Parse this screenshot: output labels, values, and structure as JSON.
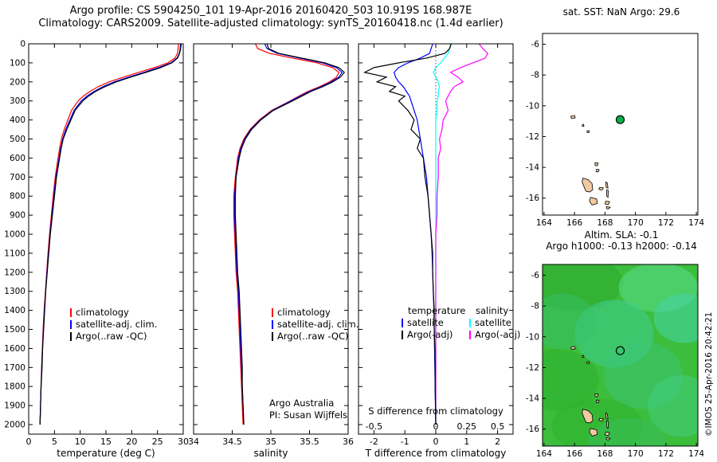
{
  "page": {
    "title_line1": "Argo profile: CS 5904250_101 19-Apr-2016 20160420_503 10.919S 168.987E",
    "title_line2": "Climatology: CARS2009. Satellite-adjusted climatology: synTS_20160418.nc (1.4d earlier)"
  },
  "panels_text": {
    "legend_profile": {
      "items": [
        {
          "label": "climatology",
          "color": "#ff0000"
        },
        {
          "label": "satellite-adj. clim.",
          "color": "#0000ff"
        },
        {
          "label": "Argo(..raw -QC)",
          "color": "#000000"
        }
      ]
    },
    "argo_credit_line1": "Argo Australia",
    "argo_credit_line2": "PI: Susan Wijffels",
    "diff_legend": {
      "col1_header": "temperature",
      "col2_header": "salinity",
      "col1_items": [
        {
          "label": "satellite",
          "color": "#0000ff"
        },
        {
          "label": "Argo(-adj)",
          "color": "#000000"
        }
      ],
      "col2_items": [
        {
          "label": "satellite",
          "color": "#00ffff"
        },
        {
          "label": "Argo(-adj)",
          "color": "#ff00ff"
        }
      ]
    },
    "s_diff_caption": "S difference from climatology"
  },
  "coastline_polygons": [
    [
      [
        165.75,
        -10.68
      ],
      [
        166.0,
        -10.62
      ],
      [
        166.05,
        -10.78
      ],
      [
        165.8,
        -10.82
      ]
    ],
    [
      [
        166.5,
        -11.25
      ],
      [
        166.6,
        -11.2
      ],
      [
        166.62,
        -11.32
      ],
      [
        166.52,
        -11.35
      ]
    ],
    [
      [
        166.8,
        -11.65
      ],
      [
        166.95,
        -11.6
      ],
      [
        166.97,
        -11.72
      ],
      [
        166.85,
        -11.75
      ]
    ],
    [
      [
        167.35,
        -13.7
      ],
      [
        167.55,
        -13.72
      ],
      [
        167.5,
        -13.9
      ],
      [
        167.35,
        -13.88
      ]
    ],
    [
      [
        167.45,
        -14.12
      ],
      [
        167.62,
        -14.15
      ],
      [
        167.55,
        -14.3
      ],
      [
        167.42,
        -14.27
      ]
    ],
    [
      [
        166.55,
        -14.7
      ],
      [
        166.9,
        -14.8
      ],
      [
        167.15,
        -15.05
      ],
      [
        167.2,
        -15.45
      ],
      [
        167.0,
        -15.6
      ],
      [
        166.75,
        -15.55
      ],
      [
        166.6,
        -15.2
      ],
      [
        166.5,
        -14.95
      ]
    ],
    [
      [
        168.05,
        -14.95
      ],
      [
        168.15,
        -15.0
      ],
      [
        168.2,
        -15.35
      ],
      [
        168.08,
        -15.3
      ]
    ],
    [
      [
        167.65,
        -15.3
      ],
      [
        167.9,
        -15.33
      ],
      [
        167.8,
        -15.48
      ],
      [
        167.6,
        -15.43
      ]
    ],
    [
      [
        168.12,
        -15.45
      ],
      [
        168.22,
        -15.5
      ],
      [
        168.2,
        -15.95
      ],
      [
        168.1,
        -15.85
      ]
    ],
    [
      [
        167.05,
        -15.95
      ],
      [
        167.45,
        -16.05
      ],
      [
        167.5,
        -16.35
      ],
      [
        167.15,
        -16.45
      ],
      [
        166.98,
        -16.2
      ]
    ],
    [
      [
        168.05,
        -16.2
      ],
      [
        168.3,
        -16.22
      ],
      [
        168.22,
        -16.42
      ],
      [
        168.0,
        -16.38
      ]
    ],
    [
      [
        168.1,
        -16.55
      ],
      [
        168.35,
        -16.6
      ],
      [
        168.2,
        -16.72
      ],
      [
        168.08,
        -16.65
      ]
    ]
  ],
  "chart_data": [
    {
      "id": "temperature-profile",
      "type": "profile",
      "xlabel": "temperature (deg C)",
      "xlim": [
        0,
        30
      ],
      "xticks": [
        0,
        5,
        10,
        15,
        20,
        25,
        30
      ],
      "ylim": [
        0,
        2050
      ],
      "yticks": [
        0,
        100,
        200,
        300,
        400,
        500,
        600,
        700,
        800,
        900,
        1000,
        1100,
        1200,
        1300,
        1400,
        1500,
        1600,
        1700,
        1800,
        1900,
        2000
      ],
      "show_yticklabels": true,
      "depths": [
        0,
        25,
        50,
        75,
        100,
        125,
        150,
        175,
        200,
        225,
        250,
        275,
        300,
        350,
        400,
        450,
        500,
        550,
        600,
        700,
        800,
        900,
        1000,
        1100,
        1200,
        1300,
        1400,
        1500,
        1600,
        1700,
        1800,
        1900,
        2000
      ],
      "series": [
        {
          "name": "climatology",
          "color": "#ff0000",
          "values": [
            29.1,
            29.0,
            28.9,
            28.4,
            27.0,
            24.4,
            21.4,
            18.4,
            15.6,
            13.5,
            11.9,
            10.6,
            9.6,
            8.3,
            7.6,
            6.9,
            6.35,
            6.0,
            5.7,
            5.15,
            4.75,
            4.4,
            4.05,
            3.75,
            3.5,
            3.25,
            3.0,
            2.8,
            2.65,
            2.5,
            2.4,
            2.3,
            2.2
          ]
        },
        {
          "name": "satellite-adj-clim",
          "color": "#0000ff",
          "values": [
            29.5,
            29.4,
            29.25,
            28.8,
            27.6,
            25.2,
            22.4,
            19.4,
            16.6,
            14.4,
            12.7,
            11.3,
            10.2,
            8.8,
            8.0,
            7.2,
            6.6,
            6.2,
            5.9,
            5.3,
            4.9,
            4.5,
            4.15,
            3.85,
            3.55,
            3.3,
            3.05,
            2.85,
            2.7,
            2.55,
            2.4,
            2.3,
            2.2
          ]
        },
        {
          "name": "argo-raw-qc",
          "color": "#000000",
          "values": [
            29.6,
            29.5,
            29.3,
            28.9,
            27.8,
            25.6,
            22.8,
            19.8,
            17.0,
            14.8,
            13.0,
            11.6,
            10.5,
            9.0,
            8.2,
            7.4,
            6.7,
            6.3,
            6.0,
            5.4,
            5.0,
            4.6,
            4.2,
            3.9,
            3.6,
            3.3,
            3.1,
            2.9,
            2.7,
            2.6,
            2.4,
            2.3,
            2.2
          ]
        }
      ]
    },
    {
      "id": "salinity-profile",
      "type": "profile",
      "xlabel": "salinity",
      "xlim": [
        34,
        36
      ],
      "xticks": [
        34,
        34.5,
        35,
        35.5,
        36
      ],
      "xtick_labels": [
        "34",
        "34.5",
        "35",
        "35.5",
        "36"
      ],
      "ylim": [
        0,
        2050
      ],
      "yticks": [
        0,
        100,
        200,
        300,
        400,
        500,
        600,
        700,
        800,
        900,
        1000,
        1100,
        1200,
        1300,
        1400,
        1500,
        1600,
        1700,
        1800,
        1900,
        2000
      ],
      "show_yticklabels": false,
      "depths": [
        0,
        25,
        50,
        75,
        100,
        125,
        150,
        175,
        200,
        225,
        250,
        275,
        300,
        350,
        400,
        450,
        500,
        550,
        600,
        700,
        800,
        900,
        1000,
        1100,
        1200,
        1300,
        1400,
        1500,
        1600,
        1700,
        1800,
        1900,
        2000
      ],
      "series": [
        {
          "name": "climatology",
          "color": "#ff0000",
          "values": [
            34.8,
            34.83,
            34.98,
            35.28,
            35.6,
            35.8,
            35.88,
            35.85,
            35.76,
            35.63,
            35.48,
            35.36,
            35.25,
            35.01,
            34.85,
            34.73,
            34.65,
            34.6,
            34.57,
            34.54,
            34.52,
            34.52,
            34.53,
            34.54,
            34.55,
            34.57,
            34.58,
            34.59,
            34.6,
            34.61,
            34.62,
            34.63,
            34.64
          ]
        },
        {
          "name": "satellite-adj-clim",
          "color": "#0000ff",
          "values": [
            34.92,
            34.95,
            35.08,
            35.37,
            35.67,
            35.85,
            35.92,
            35.88,
            35.78,
            35.65,
            35.5,
            35.38,
            35.26,
            35.02,
            34.86,
            34.74,
            34.66,
            34.61,
            34.58,
            34.55,
            34.53,
            34.53,
            34.54,
            34.55,
            34.56,
            34.58,
            34.59,
            34.6,
            34.61,
            34.62,
            34.63,
            34.64,
            34.65
          ]
        },
        {
          "name": "argo-raw-qc",
          "color": "#000000",
          "values": [
            34.95,
            34.97,
            35.1,
            35.4,
            35.7,
            35.88,
            35.95,
            35.9,
            35.8,
            35.67,
            35.52,
            35.4,
            35.28,
            35.03,
            34.87,
            34.75,
            34.67,
            34.62,
            34.59,
            34.55,
            34.54,
            34.54,
            34.55,
            34.56,
            34.57,
            34.59,
            34.6,
            34.61,
            34.62,
            34.63,
            34.63,
            34.64,
            34.65
          ]
        }
      ]
    },
    {
      "id": "difference-profile",
      "type": "profile",
      "xlabel": "T difference from climatology",
      "xlim": [
        -2.5,
        2.5
      ],
      "xticks": [
        -2,
        -1,
        0,
        1,
        2
      ],
      "ylim": [
        0,
        2050
      ],
      "yticks": [
        0,
        100,
        200,
        300,
        400,
        500,
        600,
        700,
        800,
        900,
        1000,
        1100,
        1200,
        1300,
        1400,
        1500,
        1600,
        1700,
        1800,
        1900,
        2000
      ],
      "show_yticklabels": false,
      "zero_line": true,
      "s_axis": {
        "positions": [
          -2,
          0,
          1,
          2
        ],
        "labels": [
          "-0.5",
          "0",
          "0.25",
          "0.5"
        ]
      },
      "depths": [
        0,
        25,
        50,
        75,
        100,
        125,
        150,
        175,
        200,
        225,
        250,
        275,
        300,
        350,
        400,
        450,
        500,
        550,
        600,
        700,
        800,
        900,
        1000,
        1100,
        1200,
        1300,
        1400,
        1500,
        1600,
        1700,
        1800,
        1900,
        2000
      ],
      "series": [
        {
          "name": "salinity-satellite-diff",
          "color": "#00ffff",
          "xscale": 4,
          "values": [
            0.12,
            0.11,
            0.1,
            0.07,
            0.04,
            0.0,
            -0.02,
            0.0,
            0.02,
            0.03,
            0.02,
            0.02,
            0.01,
            0.01,
            0.0,
            0.0,
            0.0,
            0.0,
            0.0,
            0.0,
            0.0,
            0.0,
            0.0,
            0.0,
            0.0,
            0.0,
            0.0,
            0.0,
            0.0,
            0.0,
            0.0,
            0.0,
            0.0
          ]
        },
        {
          "name": "salinity-argo-diff",
          "color": "#ff00ff",
          "xscale": 4,
          "values": [
            0.35,
            0.38,
            0.42,
            0.4,
            0.3,
            0.2,
            0.12,
            0.18,
            0.22,
            0.15,
            0.12,
            0.1,
            0.08,
            0.1,
            0.06,
            0.05,
            0.03,
            0.04,
            0.02,
            0.02,
            0.01,
            0.01,
            0.0,
            0.0,
            0.0,
            0.0,
            0.0,
            0.0,
            0.0,
            0.0,
            0.0,
            0.0,
            0.0
          ]
        },
        {
          "name": "temperature-satellite-diff",
          "color": "#0000ff",
          "values": [
            -0.1,
            -0.15,
            -0.2,
            -0.5,
            -0.9,
            -1.2,
            -1.35,
            -1.3,
            -1.2,
            -1.05,
            -0.95,
            -0.85,
            -0.8,
            -0.7,
            -0.6,
            -0.55,
            -0.5,
            -0.45,
            -0.4,
            -0.3,
            -0.25,
            -0.2,
            -0.15,
            -0.12,
            -0.1,
            -0.08,
            -0.06,
            -0.05,
            -0.04,
            -0.03,
            -0.02,
            -0.01,
            0
          ]
        },
        {
          "name": "temperature-argo-diff",
          "color": "#000000",
          "values": [
            0.5,
            0.45,
            0.3,
            -0.3,
            -1.2,
            -2.0,
            -2.3,
            -1.6,
            -1.9,
            -1.3,
            -1.5,
            -1.0,
            -1.2,
            -0.9,
            -0.7,
            -0.8,
            -0.5,
            -0.6,
            -0.4,
            -0.35,
            -0.25,
            -0.2,
            -0.15,
            -0.1,
            -0.1,
            -0.08,
            -0.05,
            -0.05,
            -0.03,
            -0.02,
            -0.02,
            -0.01,
            0
          ]
        }
      ]
    },
    {
      "id": "map-sst",
      "type": "map",
      "title": "sat. SST: NaN Argo: 29.6",
      "xlim": [
        163.9,
        174.1
      ],
      "xticks": [
        164,
        166,
        168,
        170,
        172,
        174
      ],
      "ylim": [
        -17.1,
        -5.3
      ],
      "yticks": [
        -6,
        -8,
        -10,
        -12,
        -14,
        -16
      ],
      "bg": "#ffffff",
      "land_color": "#f2c9a0",
      "marker": {
        "lon": 169.0,
        "lat": -10.9,
        "style": "filled",
        "color": "#00b050"
      }
    },
    {
      "id": "map-sla",
      "type": "map",
      "title1": "Altim. SLA: -0.1",
      "title2": "Argo h1000: -0.13 h2000: -0.14",
      "watermark": "©IMOS 25-Apr-2016 20:42:21",
      "xlim": [
        163.9,
        174.1
      ],
      "xticks": [
        164,
        166,
        168,
        170,
        172,
        174
      ],
      "ylim": [
        -17.1,
        -5.3
      ],
      "yticks": [
        -6,
        -8,
        -10,
        -12,
        -14,
        -16
      ],
      "bg": "#3cbd3c",
      "land_color": "#f2c9a0",
      "marker": {
        "lon": 169.0,
        "lat": -10.9,
        "style": "open",
        "color": "#000000"
      },
      "patches": [
        {
          "lon": 166.0,
          "lat": -6.5,
          "rx": 3.2,
          "ry": 1.8,
          "color": "#2fae2f",
          "opacity": 0.7
        },
        {
          "lon": 171.5,
          "lat": -6.8,
          "rx": 2.6,
          "ry": 1.6,
          "color": "#57d887",
          "opacity": 0.6
        },
        {
          "lon": 173.2,
          "lat": -8.8,
          "rx": 2.0,
          "ry": 1.6,
          "color": "#45d4a0",
          "opacity": 0.6
        },
        {
          "lon": 168.6,
          "lat": -9.8,
          "rx": 2.6,
          "ry": 2.2,
          "color": "#3ecf9a",
          "opacity": 0.5
        },
        {
          "lon": 165.2,
          "lat": -9.0,
          "rx": 2.2,
          "ry": 1.8,
          "color": "#35c06a",
          "opacity": 0.5
        },
        {
          "lon": 164.8,
          "lat": -12.8,
          "rx": 2.8,
          "ry": 2.0,
          "color": "#2db02d",
          "opacity": 0.6
        },
        {
          "lon": 170.5,
          "lat": -12.5,
          "rx": 2.6,
          "ry": 2.2,
          "color": "#3cc578",
          "opacity": 0.5
        },
        {
          "lon": 173.0,
          "lat": -14.5,
          "rx": 2.2,
          "ry": 2.0,
          "color": "#43cf86",
          "opacity": 0.5
        },
        {
          "lon": 167.5,
          "lat": -15.8,
          "rx": 3.0,
          "ry": 1.8,
          "color": "#2fb42f",
          "opacity": 0.6
        },
        {
          "lon": 169.5,
          "lat": -16.8,
          "rx": 2.6,
          "ry": 1.5,
          "color": "#37bd5e",
          "opacity": 0.5
        }
      ]
    }
  ]
}
